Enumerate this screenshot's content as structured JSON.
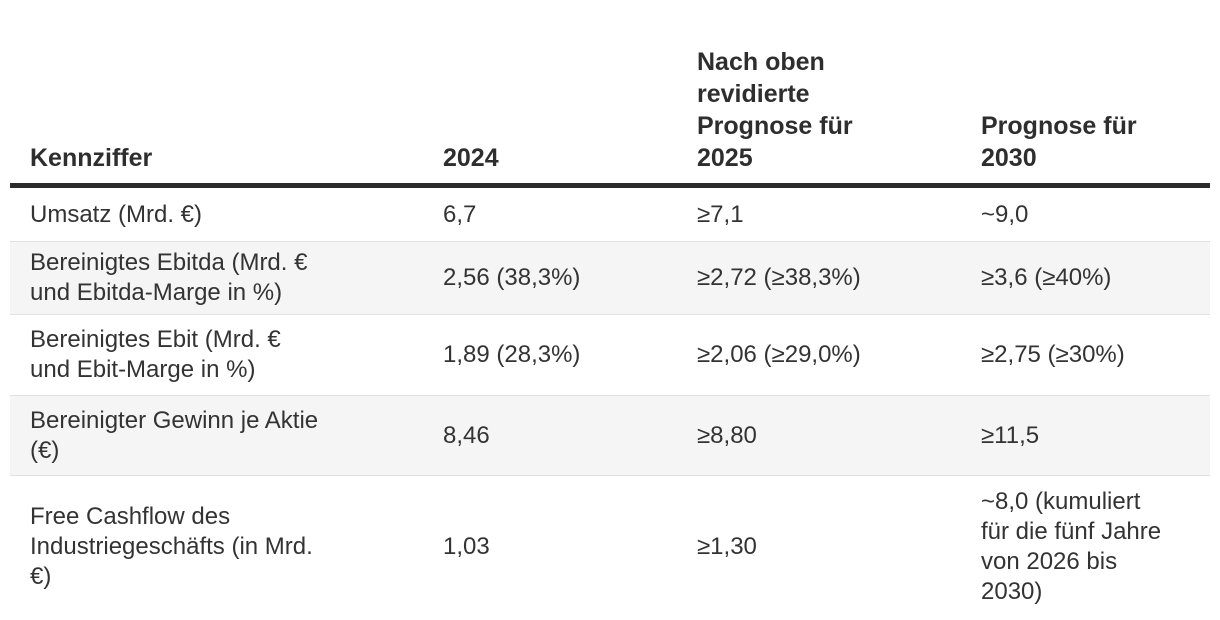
{
  "colors": {
    "text": "#333333",
    "header_rule": "#2b2b2b",
    "row_separator": "#e1e1e1",
    "stripe_background": "#f5f5f5",
    "page_background": "#ffffff"
  },
  "chart_data": {
    "type": "table",
    "title": "",
    "columns": [
      "Kennziffer",
      "2024",
      "Nach oben revidierte Prognose für 2025",
      "Prognose für 2030"
    ],
    "rows": [
      [
        "Umsatz (Mrd. €)",
        "6,7",
        "≥7,1",
        "~9,0"
      ],
      [
        "Bereinigtes Ebitda (Mrd. € und Ebitda-Marge in %)",
        "2,56 (38,3%)",
        "≥2,72 (≥38,3%)",
        "≥3,6 (≥40%)"
      ],
      [
        "Bereinigtes Ebit (Mrd. € und Ebit-Marge in %)",
        "1,89 (28,3%)",
        "≥2,06 (≥29,0%)",
        "≥2,75 (≥30%)"
      ],
      [
        "Bereinigter Gewinn je Aktie (€)",
        "8,46",
        "≥8,80",
        "≥11,5"
      ],
      [
        "Free Cashflow des Industriegeschäfts (in Mrd. €)",
        "1,03",
        "≥1,30",
        "~8,0 (kumuliert für die fünf Jahre von 2026 bis 2030)"
      ]
    ],
    "layout_hints": {
      "striped_rows": [
        2,
        4
      ],
      "header_rule": "thick dark bottom border",
      "grid": "horizontal separators only"
    }
  },
  "display": {
    "headers": [
      "Kennziffer",
      "2024",
      "Nach oben\nrevidierte\nPrognose für\n2025",
      "Prognose für\n2030"
    ],
    "rows": [
      {
        "cells": [
          "Umsatz (Mrd. €)",
          "6,7",
          "≥7,1",
          "~9,0"
        ]
      },
      {
        "cells": [
          "Bereinigtes Ebitda (Mrd. €\nund Ebitda-Marge in %)",
          "2,56 (38,3%)",
          "≥2,72 (≥38,3%)",
          "≥3,6 (≥40%)"
        ]
      },
      {
        "cells": [
          "Bereinigtes Ebit (Mrd. €\nund Ebit-Marge in %)",
          "1,89 (28,3%)",
          "≥2,06 (≥29,0%)",
          "≥2,75 (≥30%)"
        ]
      },
      {
        "cells": [
          "Bereinigter Gewinn je Aktie\n(€)",
          "8,46",
          "≥8,80",
          "≥11,5"
        ]
      },
      {
        "cells": [
          "Free Cashflow des\nIndustriegeschäfts (in Mrd.\n€)",
          "1,03",
          "≥1,30",
          "~8,0 (kumuliert\nfür die fünf Jahre\nvon 2026 bis\n2030)"
        ]
      }
    ]
  }
}
